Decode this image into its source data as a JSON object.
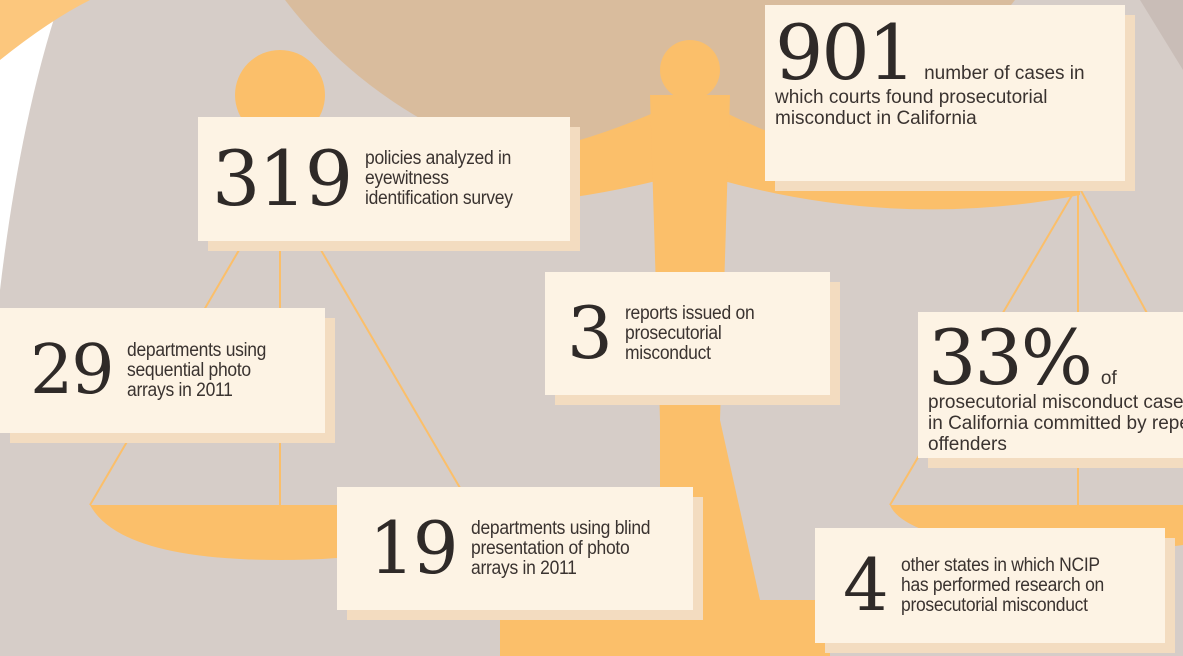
{
  "stats": [
    {
      "number": "319",
      "text": "policies analyzed in eyewitness identification survey"
    },
    {
      "number": "29",
      "text": "departments using sequential photo arrays in 2011"
    },
    {
      "number": "3",
      "text": "reports issued on prosecutorial misconduct"
    },
    {
      "number": "19",
      "text": "departments using blind presentation of photo arrays in 2011"
    },
    {
      "number": "901",
      "text": "number of cases in which courts found prosecutorial misconduct in California"
    },
    {
      "number": "33%",
      "text": "of prosecutorial misconduct cases in California committed by repeat offenders"
    },
    {
      "number": "4",
      "text": "other states in which NCIP has performed research on prosecutorial misconduct"
    }
  ]
}
